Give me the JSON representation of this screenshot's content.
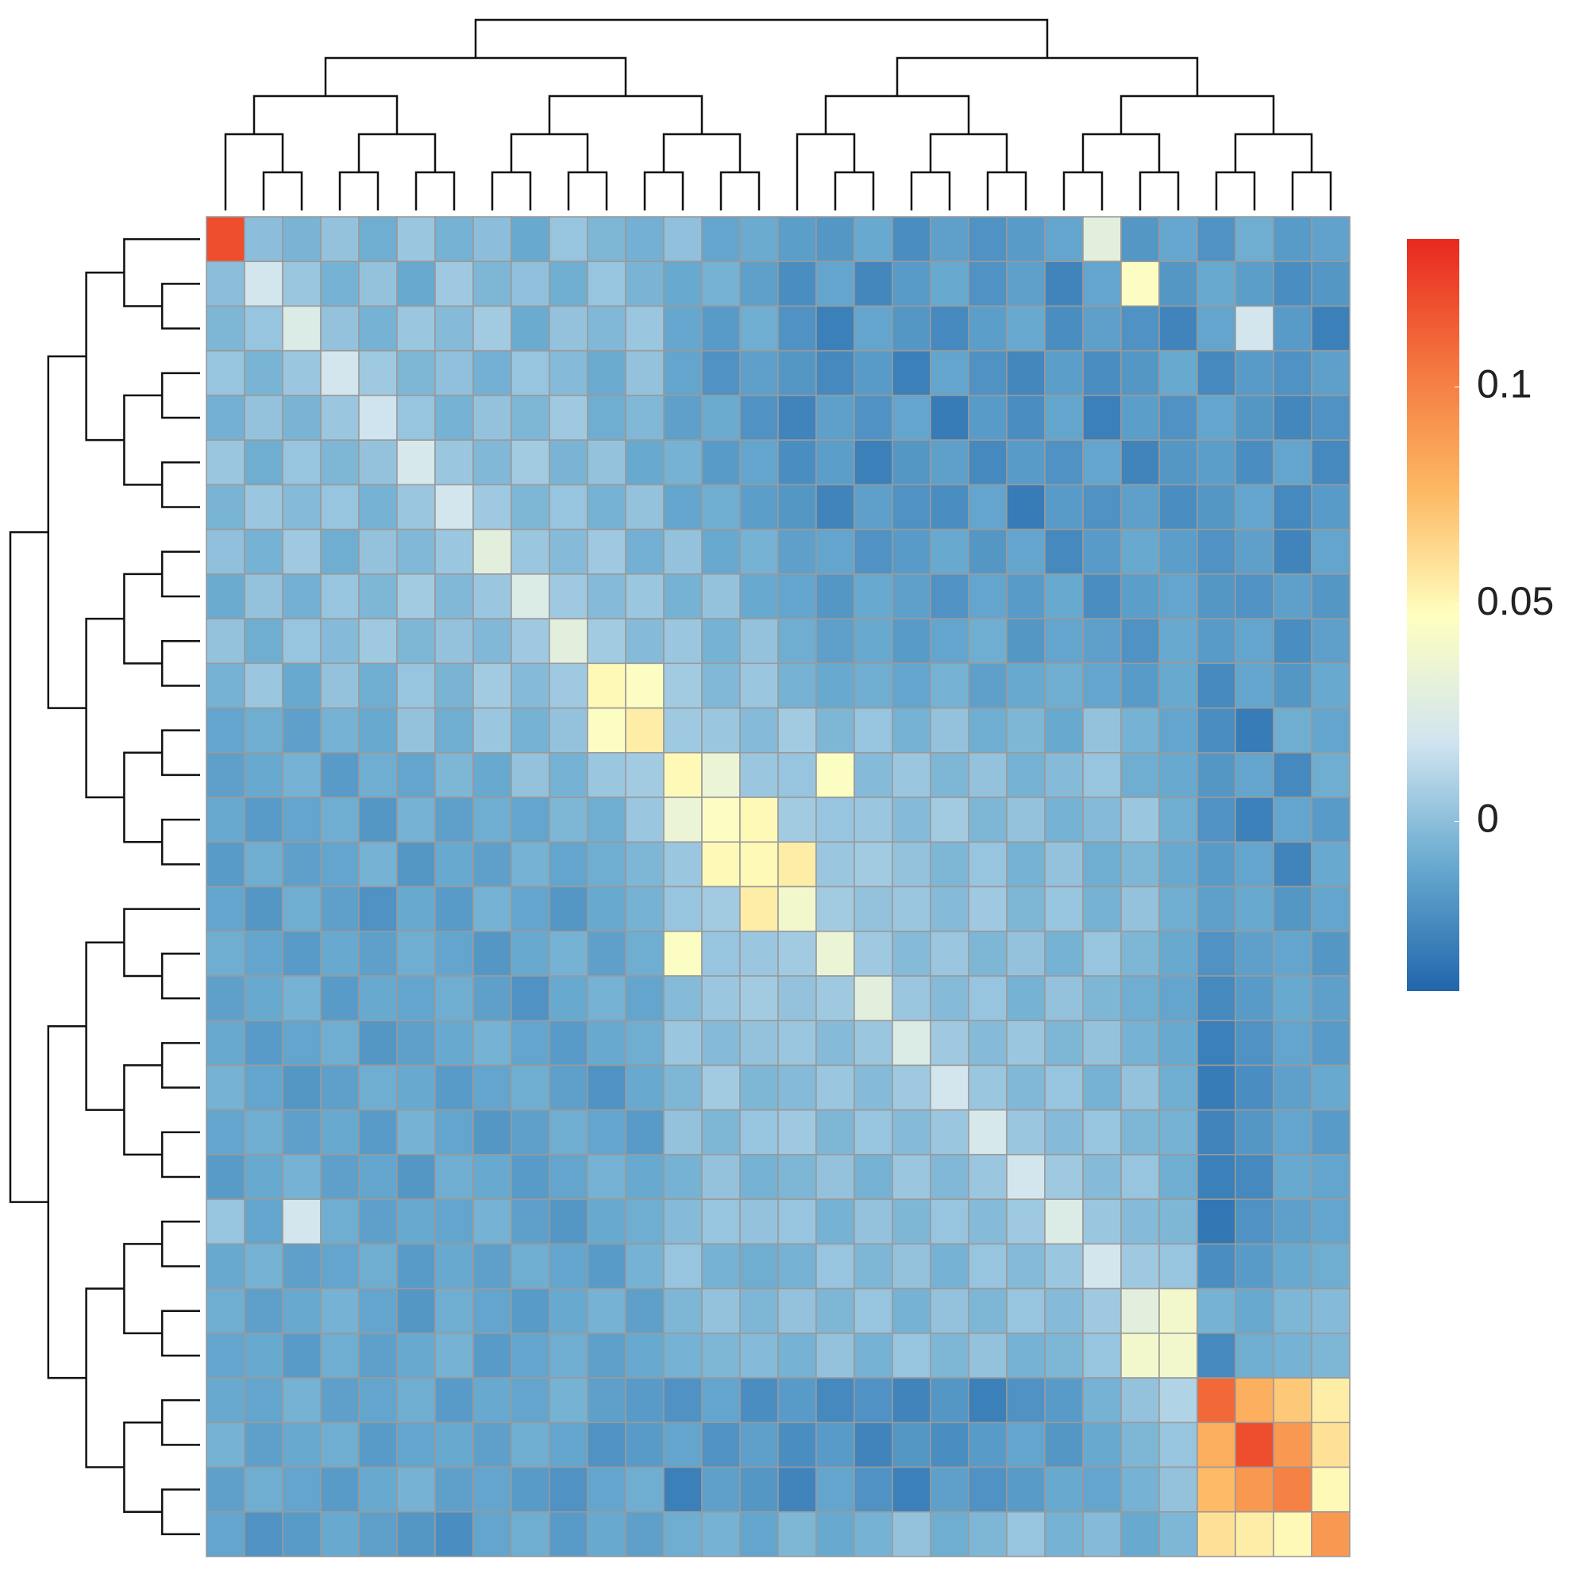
{
  "chart_data": {
    "type": "heatmap",
    "colors": [
      "#2166ac",
      "#67a9cf",
      "#d1e5f0",
      "#ffffbf",
      "#fdb863",
      "#f4753e",
      "#e8281f"
    ],
    "zlim": [
      -0.039,
      0.134
    ],
    "zticks": [
      0,
      0.05,
      0.1
    ],
    "values": [
      [
        0.12,
        0.0,
        -0.005,
        0.002,
        -0.008,
        0.004,
        -0.006,
        0.0,
        -0.01,
        0.003,
        -0.004,
        -0.007,
        0.001,
        -0.012,
        -0.009,
        -0.015,
        -0.018,
        -0.01,
        -0.022,
        -0.014,
        -0.02,
        -0.016,
        -0.012,
        0.03,
        -0.018,
        -0.011,
        -0.02,
        -0.008,
        -0.016,
        -0.013
      ],
      [
        0.0,
        0.02,
        0.004,
        -0.006,
        0.002,
        -0.01,
        0.005,
        -0.004,
        0.001,
        -0.008,
        0.003,
        -0.005,
        -0.01,
        -0.006,
        -0.014,
        -0.022,
        -0.012,
        -0.025,
        -0.016,
        -0.01,
        -0.02,
        -0.014,
        -0.026,
        -0.012,
        0.045,
        -0.018,
        -0.01,
        -0.015,
        -0.022,
        -0.018
      ],
      [
        -0.004,
        0.003,
        0.025,
        0.002,
        -0.006,
        0.004,
        -0.002,
        0.006,
        -0.009,
        0.002,
        -0.003,
        0.004,
        -0.011,
        -0.016,
        -0.008,
        -0.02,
        -0.028,
        -0.012,
        -0.018,
        -0.024,
        -0.015,
        -0.01,
        -0.022,
        -0.014,
        -0.02,
        -0.026,
        -0.012,
        0.02,
        -0.016,
        -0.028
      ],
      [
        0.003,
        -0.005,
        0.004,
        0.02,
        0.005,
        -0.004,
        0.001,
        -0.007,
        0.003,
        -0.002,
        -0.009,
        0.002,
        -0.012,
        -0.02,
        -0.014,
        -0.018,
        -0.024,
        -0.016,
        -0.028,
        -0.012,
        -0.02,
        -0.025,
        -0.015,
        -0.022,
        -0.018,
        -0.01,
        -0.024,
        -0.016,
        -0.02,
        -0.014
      ],
      [
        -0.007,
        0.002,
        -0.005,
        0.004,
        0.018,
        0.003,
        -0.006,
        0.002,
        -0.004,
        0.005,
        -0.008,
        -0.003,
        -0.014,
        -0.009,
        -0.02,
        -0.026,
        -0.014,
        -0.02,
        -0.012,
        -0.03,
        -0.016,
        -0.022,
        -0.012,
        -0.028,
        -0.015,
        -0.02,
        -0.012,
        -0.018,
        -0.025,
        -0.02
      ],
      [
        0.004,
        -0.008,
        0.003,
        -0.004,
        0.002,
        0.022,
        0.004,
        -0.003,
        0.006,
        -0.005,
        0.002,
        -0.01,
        -0.006,
        -0.016,
        -0.012,
        -0.022,
        -0.015,
        -0.028,
        -0.018,
        -0.014,
        -0.024,
        -0.016,
        -0.02,
        -0.012,
        -0.026,
        -0.018,
        -0.015,
        -0.022,
        -0.012,
        -0.024
      ],
      [
        -0.005,
        0.004,
        -0.002,
        0.003,
        -0.006,
        0.004,
        0.02,
        0.005,
        -0.004,
        0.003,
        -0.006,
        0.002,
        -0.012,
        -0.008,
        -0.015,
        -0.018,
        -0.026,
        -0.014,
        -0.02,
        -0.022,
        -0.012,
        -0.03,
        -0.016,
        -0.02,
        -0.014,
        -0.022,
        -0.018,
        -0.012,
        -0.024,
        -0.016
      ],
      [
        0.001,
        -0.006,
        0.005,
        -0.008,
        0.002,
        -0.003,
        0.004,
        0.03,
        0.004,
        -0.002,
        0.005,
        -0.007,
        0.002,
        -0.01,
        -0.006,
        -0.014,
        -0.012,
        -0.02,
        -0.016,
        -0.01,
        -0.018,
        -0.012,
        -0.024,
        -0.016,
        -0.01,
        -0.015,
        -0.02,
        -0.014,
        -0.026,
        -0.012
      ],
      [
        -0.009,
        0.002,
        -0.007,
        0.003,
        -0.004,
        0.006,
        -0.003,
        0.004,
        0.025,
        0.005,
        -0.002,
        0.004,
        -0.006,
        0.002,
        -0.01,
        -0.012,
        -0.018,
        -0.01,
        -0.014,
        -0.02,
        -0.012,
        -0.016,
        -0.01,
        -0.022,
        -0.015,
        -0.012,
        -0.018,
        -0.02,
        -0.014,
        -0.018
      ],
      [
        0.002,
        -0.008,
        0.003,
        -0.002,
        0.005,
        -0.004,
        0.002,
        -0.003,
        0.005,
        0.03,
        0.006,
        -0.002,
        0.004,
        -0.006,
        0.002,
        -0.008,
        -0.014,
        -0.01,
        -0.016,
        -0.012,
        -0.008,
        -0.018,
        -0.012,
        -0.014,
        -0.02,
        -0.01,
        -0.016,
        -0.012,
        -0.022,
        -0.014
      ],
      [
        -0.006,
        0.004,
        -0.01,
        0.002,
        -0.008,
        0.003,
        -0.005,
        0.006,
        -0.002,
        0.005,
        0.05,
        0.045,
        0.006,
        -0.003,
        0.004,
        -0.006,
        -0.01,
        -0.008,
        -0.012,
        -0.006,
        -0.014,
        -0.01,
        -0.008,
        -0.012,
        -0.016,
        -0.01,
        -0.024,
        -0.012,
        -0.018,
        -0.01
      ],
      [
        -0.012,
        -0.008,
        -0.014,
        -0.006,
        -0.01,
        0.002,
        -0.008,
        0.004,
        -0.006,
        0.002,
        0.045,
        0.055,
        0.005,
        0.004,
        -0.002,
        0.006,
        -0.004,
        0.003,
        -0.006,
        0.002,
        -0.008,
        -0.004,
        -0.01,
        0.002,
        -0.006,
        -0.012,
        -0.022,
        -0.03,
        -0.008,
        -0.012
      ],
      [
        -0.014,
        -0.01,
        -0.006,
        -0.016,
        -0.008,
        -0.012,
        -0.004,
        -0.01,
        0.002,
        -0.006,
        0.004,
        0.006,
        0.05,
        0.035,
        0.004,
        0.003,
        0.045,
        -0.002,
        0.004,
        -0.004,
        0.002,
        -0.006,
        -0.002,
        0.003,
        -0.008,
        -0.01,
        -0.018,
        -0.012,
        -0.024,
        -0.008
      ],
      [
        -0.01,
        -0.016,
        -0.012,
        -0.008,
        -0.018,
        -0.006,
        -0.014,
        -0.008,
        -0.012,
        -0.004,
        -0.008,
        0.004,
        0.035,
        0.045,
        0.05,
        0.006,
        0.003,
        0.004,
        -0.002,
        0.006,
        -0.004,
        0.002,
        -0.006,
        -0.002,
        0.004,
        -0.008,
        -0.02,
        -0.028,
        -0.012,
        -0.016
      ],
      [
        -0.016,
        -0.008,
        -0.014,
        -0.012,
        -0.006,
        -0.018,
        -0.01,
        -0.014,
        -0.006,
        -0.012,
        -0.008,
        -0.004,
        0.004,
        0.05,
        0.05,
        0.055,
        0.004,
        0.006,
        0.002,
        -0.004,
        0.003,
        -0.006,
        0.002,
        -0.008,
        -0.004,
        -0.01,
        -0.016,
        -0.012,
        -0.026,
        -0.01
      ],
      [
        -0.012,
        -0.018,
        -0.008,
        -0.014,
        -0.02,
        -0.01,
        -0.016,
        -0.006,
        -0.012,
        -0.018,
        -0.01,
        -0.006,
        0.003,
        0.006,
        0.055,
        0.04,
        0.006,
        0.002,
        0.004,
        -0.002,
        0.005,
        -0.004,
        0.003,
        -0.006,
        0.002,
        -0.008,
        -0.014,
        -0.01,
        -0.018,
        -0.012
      ],
      [
        -0.008,
        -0.012,
        -0.016,
        -0.01,
        -0.014,
        -0.008,
        -0.012,
        -0.018,
        -0.01,
        -0.006,
        -0.014,
        -0.008,
        0.045,
        0.003,
        0.004,
        0.006,
        0.035,
        0.005,
        -0.002,
        0.004,
        -0.004,
        0.002,
        -0.006,
        0.003,
        -0.004,
        -0.01,
        -0.02,
        -0.014,
        -0.012,
        -0.018
      ],
      [
        -0.014,
        -0.01,
        -0.006,
        -0.016,
        -0.01,
        -0.012,
        -0.008,
        -0.014,
        -0.02,
        -0.01,
        -0.006,
        -0.012,
        -0.002,
        0.004,
        0.006,
        0.002,
        0.005,
        0.03,
        0.004,
        -0.002,
        0.003,
        -0.006,
        0.002,
        -0.004,
        -0.008,
        -0.012,
        -0.024,
        -0.016,
        -0.01,
        -0.014
      ],
      [
        -0.01,
        -0.016,
        -0.012,
        -0.008,
        -0.018,
        -0.014,
        -0.01,
        -0.006,
        -0.012,
        -0.016,
        -0.01,
        -0.008,
        0.004,
        -0.002,
        0.002,
        0.004,
        -0.002,
        0.004,
        0.025,
        0.005,
        -0.002,
        0.004,
        -0.004,
        0.002,
        -0.006,
        -0.01,
        -0.028,
        -0.02,
        -0.012,
        -0.016
      ],
      [
        -0.006,
        -0.012,
        -0.018,
        -0.014,
        -0.008,
        -0.01,
        -0.016,
        -0.012,
        -0.008,
        -0.014,
        -0.02,
        -0.01,
        -0.004,
        0.006,
        -0.004,
        -0.002,
        0.004,
        -0.002,
        0.005,
        0.02,
        0.004,
        -0.003,
        0.003,
        -0.006,
        0.002,
        -0.008,
        -0.03,
        -0.022,
        -0.014,
        -0.01
      ],
      [
        -0.012,
        -0.008,
        -0.014,
        -0.01,
        -0.016,
        -0.006,
        -0.012,
        -0.018,
        -0.014,
        -0.008,
        -0.012,
        -0.016,
        0.002,
        -0.004,
        0.003,
        0.005,
        -0.004,
        0.003,
        -0.002,
        0.004,
        0.022,
        0.004,
        -0.002,
        0.003,
        -0.004,
        -0.006,
        -0.026,
        -0.018,
        -0.012,
        -0.016
      ],
      [
        -0.016,
        -0.01,
        -0.006,
        -0.014,
        -0.012,
        -0.018,
        -0.008,
        -0.01,
        -0.016,
        -0.012,
        -0.006,
        -0.01,
        -0.006,
        0.002,
        -0.006,
        -0.004,
        0.002,
        -0.006,
        0.004,
        -0.003,
        0.004,
        0.02,
        0.005,
        -0.002,
        0.003,
        -0.008,
        -0.028,
        -0.024,
        -0.01,
        -0.012
      ],
      [
        0.003,
        -0.012,
        0.02,
        -0.008,
        -0.014,
        -0.01,
        -0.012,
        -0.006,
        -0.014,
        -0.018,
        -0.01,
        -0.008,
        -0.002,
        0.003,
        0.002,
        0.003,
        -0.006,
        0.002,
        -0.004,
        0.003,
        -0.002,
        0.005,
        0.025,
        0.004,
        -0.002,
        -0.004,
        -0.032,
        -0.02,
        -0.014,
        -0.012
      ],
      [
        -0.01,
        -0.006,
        -0.014,
        -0.012,
        -0.008,
        -0.016,
        -0.01,
        -0.014,
        -0.008,
        -0.012,
        -0.016,
        -0.006,
        0.003,
        -0.006,
        -0.008,
        -0.006,
        0.003,
        -0.004,
        0.002,
        -0.006,
        0.003,
        -0.002,
        0.004,
        0.02,
        0.005,
        0.003,
        -0.022,
        -0.016,
        -0.01,
        -0.008
      ],
      [
        -0.008,
        -0.014,
        -0.01,
        -0.006,
        -0.012,
        -0.018,
        -0.008,
        -0.012,
        -0.016,
        -0.01,
        -0.006,
        -0.014,
        -0.004,
        0.002,
        -0.004,
        0.002,
        -0.004,
        0.003,
        -0.006,
        0.002,
        -0.004,
        0.003,
        -0.002,
        0.005,
        0.03,
        0.04,
        -0.006,
        -0.01,
        -0.004,
        -0.002
      ],
      [
        -0.012,
        -0.01,
        -0.016,
        -0.008,
        -0.014,
        -0.01,
        -0.006,
        -0.016,
        -0.012,
        -0.008,
        -0.014,
        -0.01,
        -0.006,
        -0.004,
        -0.002,
        -0.006,
        0.002,
        -0.006,
        0.003,
        -0.004,
        0.002,
        -0.006,
        -0.004,
        0.003,
        0.04,
        0.04,
        -0.024,
        -0.008,
        -0.006,
        -0.004
      ],
      [
        -0.01,
        -0.012,
        -0.006,
        -0.014,
        -0.012,
        -0.008,
        -0.016,
        -0.01,
        -0.012,
        -0.006,
        -0.014,
        -0.016,
        -0.02,
        -0.012,
        -0.022,
        -0.016,
        -0.024,
        -0.02,
        -0.026,
        -0.018,
        -0.028,
        -0.02,
        -0.016,
        -0.006,
        0.002,
        0.01,
        0.11,
        0.08,
        0.07,
        0.055
      ],
      [
        -0.006,
        -0.014,
        -0.01,
        -0.008,
        -0.016,
        -0.012,
        -0.01,
        -0.014,
        -0.008,
        -0.012,
        -0.02,
        -0.016,
        -0.012,
        -0.02,
        -0.014,
        -0.022,
        -0.016,
        -0.026,
        -0.018,
        -0.022,
        -0.016,
        -0.012,
        -0.018,
        -0.01,
        -0.004,
        0.003,
        0.08,
        0.12,
        0.09,
        0.06
      ],
      [
        -0.014,
        -0.008,
        -0.012,
        -0.016,
        -0.01,
        -0.006,
        -0.014,
        -0.012,
        -0.016,
        -0.02,
        -0.012,
        -0.008,
        -0.028,
        -0.014,
        -0.018,
        -0.026,
        -0.012,
        -0.02,
        -0.028,
        -0.014,
        -0.02,
        -0.016,
        -0.01,
        -0.012,
        -0.006,
        0.002,
        0.075,
        0.09,
        0.1,
        0.05
      ],
      [
        -0.012,
        -0.02,
        -0.016,
        -0.01,
        -0.014,
        -0.018,
        -0.022,
        -0.012,
        -0.008,
        -0.016,
        -0.01,
        -0.014,
        -0.008,
        -0.006,
        -0.012,
        -0.004,
        -0.01,
        -0.006,
        0.002,
        -0.008,
        -0.004,
        0.003,
        -0.006,
        -0.002,
        -0.01,
        -0.004,
        0.06,
        0.055,
        0.05,
        0.09
      ]
    ]
  }
}
